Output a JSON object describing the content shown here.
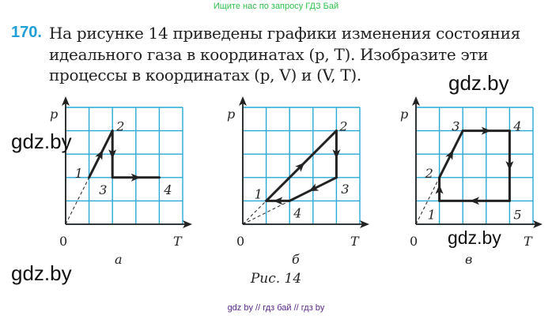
{
  "header_banner": "Ищите нас по запросу ГДЗ Бай",
  "problem": {
    "number": "170.",
    "lines": [
      "На рисунке 14 приведены графики изменения состояния",
      "идеального газа в координатах (p, T). Изобразите эти",
      "процессы в координатах (p, V) и (V, T)."
    ]
  },
  "watermarks": [
    "gdz.by",
    "gdz.by",
    "gdz.by",
    "gdz.by"
  ],
  "figure": {
    "caption": "Рис. 14",
    "grid_color": "#29a8d6",
    "graphs": [
      {
        "label": "а",
        "y_axis": "p",
        "x_axis": "T",
        "origin": "0",
        "points": [
          {
            "name": "1",
            "T": 1,
            "p": 2
          },
          {
            "name": "2",
            "T": 2,
            "p": 4
          },
          {
            "name": "3",
            "T": 2,
            "p": 2
          },
          {
            "name": "4",
            "T": 4,
            "p": 2
          }
        ],
        "closed": false,
        "dashed_to_origin": [
          "1"
        ]
      },
      {
        "label": "б",
        "y_axis": "p",
        "x_axis": "T",
        "origin": "0",
        "points": [
          {
            "name": "1",
            "T": 1,
            "p": 1
          },
          {
            "name": "2",
            "T": 4,
            "p": 4
          },
          {
            "name": "3",
            "T": 4,
            "p": 2
          },
          {
            "name": "4",
            "T": 2,
            "p": 1
          }
        ],
        "closed": true,
        "dashed_to_origin": [
          "1",
          "4"
        ]
      },
      {
        "label": "в",
        "y_axis": "p",
        "x_axis": "T",
        "origin": "0",
        "points": [
          {
            "name": "1",
            "T": 1,
            "p": 1
          },
          {
            "name": "2",
            "T": 1,
            "p": 2
          },
          {
            "name": "3",
            "T": 2,
            "p": 4
          },
          {
            "name": "4",
            "T": 4,
            "p": 4
          },
          {
            "name": "5",
            "T": 4,
            "p": 1
          }
        ],
        "closed": true,
        "dashed_to_origin": [
          "2"
        ]
      }
    ]
  },
  "footer": "gdz by  //  гдз бай  //  гдз by"
}
